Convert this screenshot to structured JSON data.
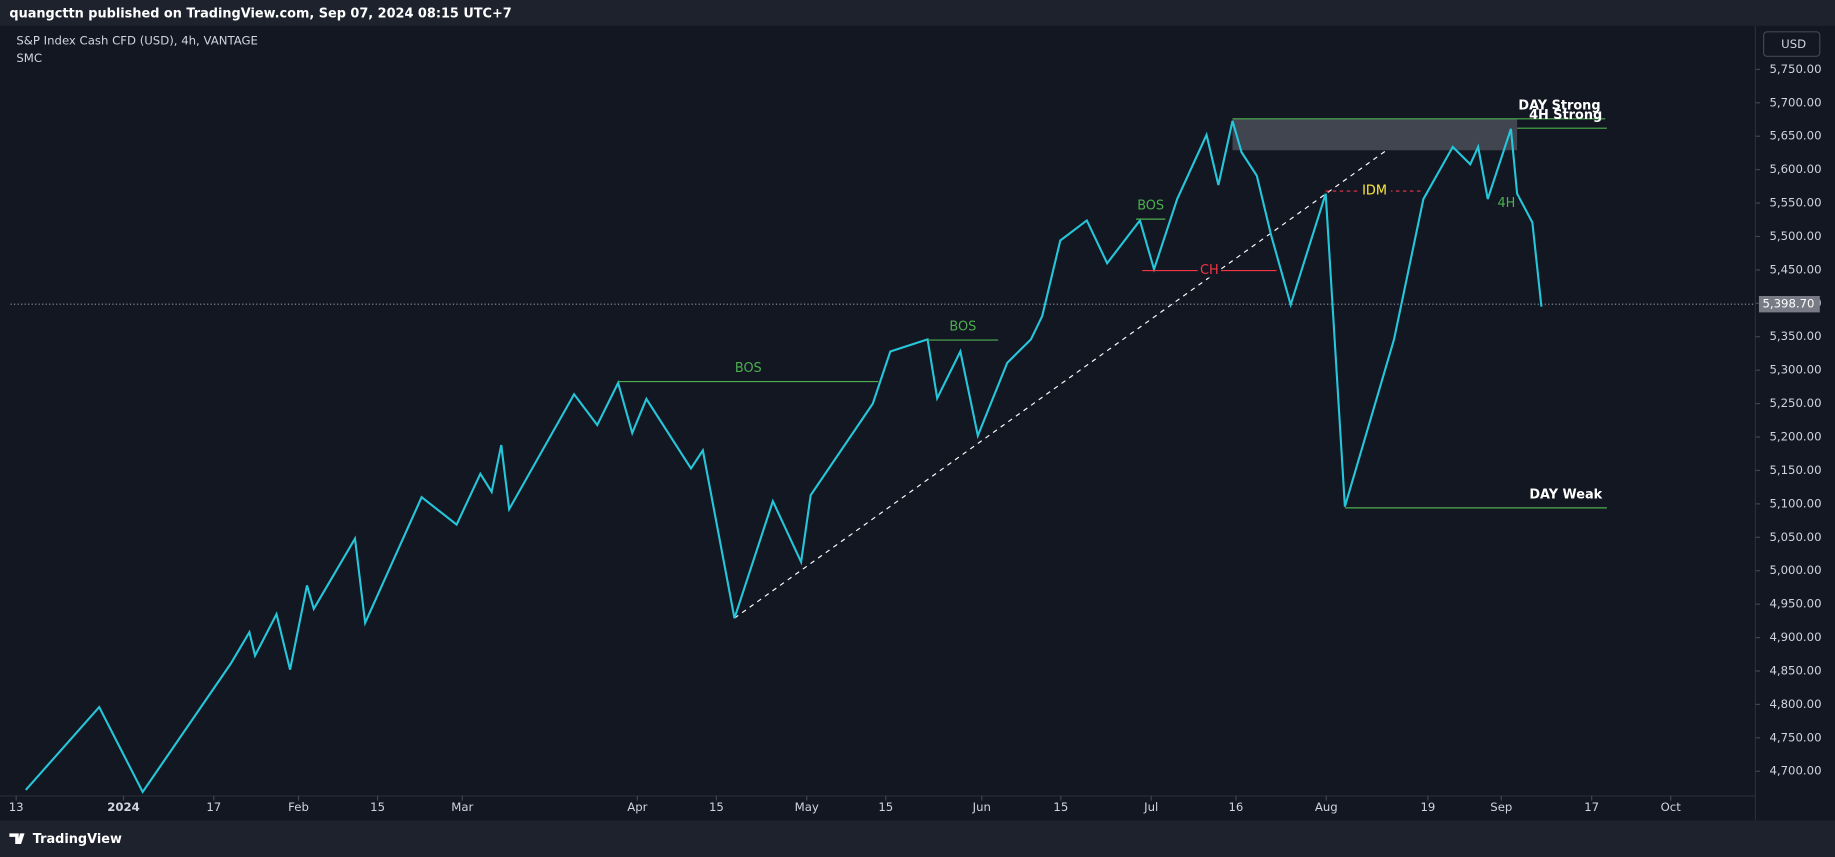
{
  "header": {
    "text": "quangcttn published on TradingView.com, Sep 07, 2024 08:15 UTC+7"
  },
  "footer": {
    "brand": "TradingView"
  },
  "chart_data": {
    "type": "line",
    "title": "S&P Index Cash CFD (USD), 4h, VANTAGE",
    "subtitle": "SMC",
    "currency": "USD",
    "color": "#26c6da",
    "x": [
      1.7,
      14.7,
      22.4,
      38.0,
      41.3,
      42.3,
      46.1,
      48.5,
      51.5,
      52.7,
      60.0,
      61.8,
      71.8,
      78.0,
      82.2,
      84.2,
      85.9,
      87.3,
      98.8,
      102.9,
      106.6,
      109.1,
      111.6,
      119.5,
      121.6,
      127.2,
      134.0,
      139.0,
      140.7,
      151.7,
      154.8,
      161.4,
      163.1,
      167.2,
      170.3,
      175.5,
      179.7,
      181.7,
      184.9,
      189.6,
      193.2,
      199.0,
      201.5,
      205.6,
      210.8,
      212.9,
      215.4,
      217.0,
      219.7,
      222.2,
      225.7,
      231.9,
      235.3,
      244.0,
      249.2,
      254.4,
      257.5,
      258.9,
      260.6,
      264.7,
      265.8,
      268.5,
      270.1
    ],
    "values": [
      4672,
      4796,
      4669,
      4861,
      4908,
      4873,
      4935,
      4852,
      4978,
      4943,
      5048,
      4922,
      5110,
      5069,
      5145,
      5118,
      5188,
      5092,
      5264,
      5218,
      5281,
      5206,
      5257,
      5153,
      5180,
      4929,
      5104,
      5013,
      5113,
      5250,
      5328,
      5346,
      5258,
      5328,
      5202,
      5311,
      5346,
      5381,
      5494,
      5524,
      5460,
      5524,
      5451,
      5556,
      5652,
      5577,
      5673,
      5626,
      5591,
      5503,
      5398,
      5564,
      5096,
      5346,
      5556,
      5634,
      5608,
      5634,
      5556,
      5661,
      5564,
      5521,
      5395
    ],
    "xlim": [
      -1,
      308
    ],
    "xticks": [
      {
        "value": 0,
        "label": "13"
      },
      {
        "value": 19,
        "label": "2024"
      },
      {
        "value": 35,
        "label": "17"
      },
      {
        "value": 50,
        "label": "Feb"
      },
      {
        "value": 64,
        "label": "15"
      },
      {
        "value": 79,
        "label": "Mar"
      },
      {
        "value": 110,
        "label": "Apr"
      },
      {
        "value": 124,
        "label": "15"
      },
      {
        "value": 140,
        "label": "May"
      },
      {
        "value": 154,
        "label": "15"
      },
      {
        "value": 171,
        "label": "Jun"
      },
      {
        "value": 185,
        "label": "15"
      },
      {
        "value": 201,
        "label": "Jul"
      },
      {
        "value": 216,
        "label": "16"
      },
      {
        "value": 232,
        "label": "Aug"
      },
      {
        "value": 250,
        "label": "19"
      },
      {
        "value": 263,
        "label": "Sep"
      },
      {
        "value": 279,
        "label": "17"
      },
      {
        "value": 293,
        "label": "Oct"
      }
    ],
    "ylim": [
      4628,
      5815
    ],
    "yticks": [
      {
        "value": 4700,
        "label": "4,700.00"
      },
      {
        "value": 4750,
        "label": "4,750.00"
      },
      {
        "value": 4800,
        "label": "4,800.00"
      },
      {
        "value": 4850,
        "label": "4,850.00"
      },
      {
        "value": 4900,
        "label": "4,900.00"
      },
      {
        "value": 4950,
        "label": "4,950.00"
      },
      {
        "value": 5000,
        "label": "5,000.00"
      },
      {
        "value": 5050,
        "label": "5,050.00"
      },
      {
        "value": 5100,
        "label": "5,100.00"
      },
      {
        "value": 5150,
        "label": "5,150.00"
      },
      {
        "value": 5200,
        "label": "5,200.00"
      },
      {
        "value": 5250,
        "label": "5,250.00"
      },
      {
        "value": 5300,
        "label": "5,300.00"
      },
      {
        "value": 5350,
        "label": "5,350.00"
      },
      {
        "value": 5400,
        "label": "5,400.00"
      },
      {
        "value": 5450,
        "label": "5,450.00"
      },
      {
        "value": 5500,
        "label": "5,500.00"
      },
      {
        "value": 5550,
        "label": "5,550.00"
      },
      {
        "value": 5600,
        "label": "5,600.00"
      },
      {
        "value": 5650,
        "label": "5,650.00"
      },
      {
        "value": 5700,
        "label": "5,700.00"
      },
      {
        "value": 5750,
        "label": "5,750.00"
      }
    ],
    "last_price": {
      "value": 5398.7,
      "label": "5,398.70"
    },
    "levels": [
      {
        "label": "BOS",
        "value": 5283,
        "x": [
          106.6,
          152.7
        ],
        "color": "#4caf50",
        "anchor": "middle",
        "dash": false
      },
      {
        "label": "BOS",
        "value": 5345,
        "x": [
          161.4,
          173.9
        ],
        "color": "#4caf50",
        "anchor": "middle",
        "dash": false
      },
      {
        "label": "BOS",
        "value": 5526,
        "x": [
          198.3,
          203.5
        ],
        "color": "#4caf50",
        "anchor": "middle",
        "dash": false
      },
      {
        "label": "CH",
        "value": 5449,
        "x": [
          199.4,
          223.2
        ],
        "color": "#f23645",
        "anchor": "middle",
        "dash": false
      },
      {
        "label": "IDM",
        "value": 5568,
        "x": [
          231.9,
          249.2
        ],
        "color": "#f23645",
        "anchor": "middle",
        "dash": true
      },
      {
        "label": "4H",
        "value": 5549,
        "x": [
          261.8,
          266.0
        ],
        "color": "#4caf50",
        "anchor": "middle",
        "dash": false
      },
      {
        "label": "DAY Strong",
        "value": 5676,
        "x": [
          215.4,
          281.4
        ],
        "color": "#4caf50",
        "anchor": "end",
        "dash": false
      },
      {
        "label": "4H Strong",
        "value": 5662,
        "x": [
          265.8,
          281.7
        ],
        "color": "#4caf50",
        "anchor": "end",
        "dash": false
      },
      {
        "label": "DAY Weak",
        "value": 5094,
        "x": [
          235.3,
          281.7
        ],
        "color": "#4caf50",
        "anchor": "end",
        "dash": false
      }
    ],
    "zones": [
      {
        "y": [
          5629,
          5676
        ],
        "x": [
          215.4,
          265.8
        ],
        "color": "#4a4e58"
      }
    ],
    "trendline": {
      "x": [
        127.2,
        243.0
      ],
      "y": [
        4929,
        5631
      ],
      "color": "#ffffff"
    }
  }
}
